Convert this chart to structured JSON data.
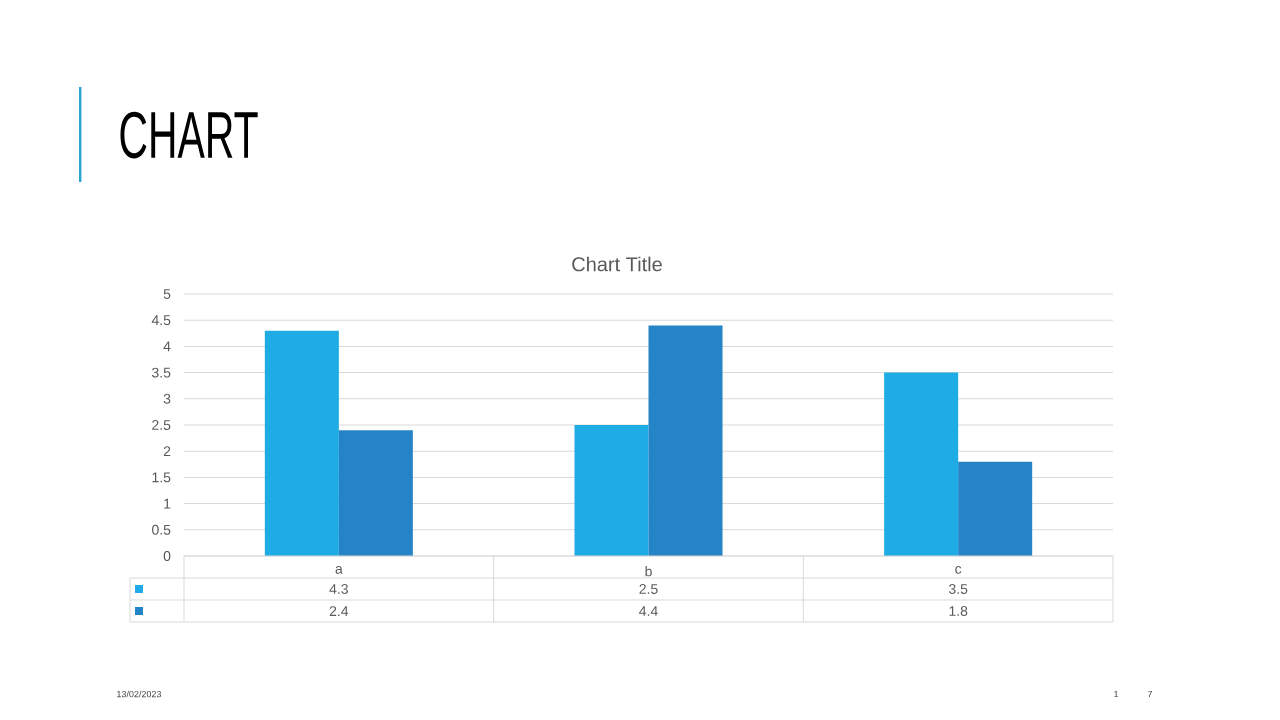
{
  "chart_data": {
    "type": "bar",
    "title": "CHART",
    "subtitle": "Chart Title",
    "categories": [
      "a",
      "b",
      "c"
    ],
    "series": [
      {
        "color": "#1fabe3",
        "values": [
          4.3,
          2.5,
          3.5
        ]
      },
      {
        "color": "#2484c6",
        "values": [
          2.4,
          4.4,
          1.8
        ]
      }
    ],
    "ylim": [
      0,
      5
    ],
    "yticks": [
      0,
      0.5,
      1,
      1.5,
      2,
      2.5,
      3,
      3.5,
      4,
      4.5,
      5
    ],
    "grid": "y",
    "data_labels": true,
    "annotations": [
      "13/02/2023",
      "1",
      "7"
    ]
  }
}
